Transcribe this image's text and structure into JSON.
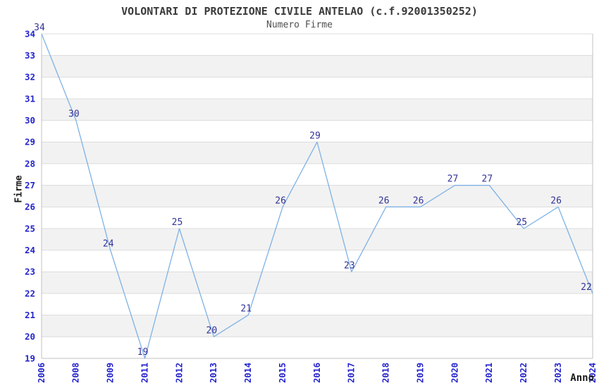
{
  "page": {
    "background": "#ffffff"
  },
  "chart_data": {
    "type": "line",
    "title": "VOLONTARI DI PROTEZIONE CIVILE ANTELAO (c.f.92001350252)",
    "subtitle": "Numero Firme",
    "xlabel": "Anno",
    "ylabel": "Firme",
    "categories": [
      "2006",
      "2008",
      "2009",
      "2011",
      "2012",
      "2013",
      "2014",
      "2015",
      "2016",
      "2017",
      "2018",
      "2019",
      "2020",
      "2021",
      "2022",
      "2023",
      "2024"
    ],
    "values": [
      34,
      30,
      24,
      19,
      25,
      20,
      21,
      26,
      29,
      23,
      26,
      26,
      27,
      27,
      25,
      26,
      22
    ],
    "ylim": [
      19,
      34
    ],
    "y_tick_step": 1,
    "grid": true,
    "alternating_bands": true,
    "legend": false,
    "data_labels": true,
    "x_tick_rotation": -90,
    "colors": {
      "line": "#7fb2e5",
      "data_label": "#333399",
      "tick_label": "#2323cd",
      "axis_label": "#1a1a1a",
      "title": "#3b3b3b",
      "subtitle": "#4f4f4f",
      "band": "#f2f2f2",
      "gridline": "#dcdcdc",
      "axis_line": "#c0c0c0"
    }
  }
}
